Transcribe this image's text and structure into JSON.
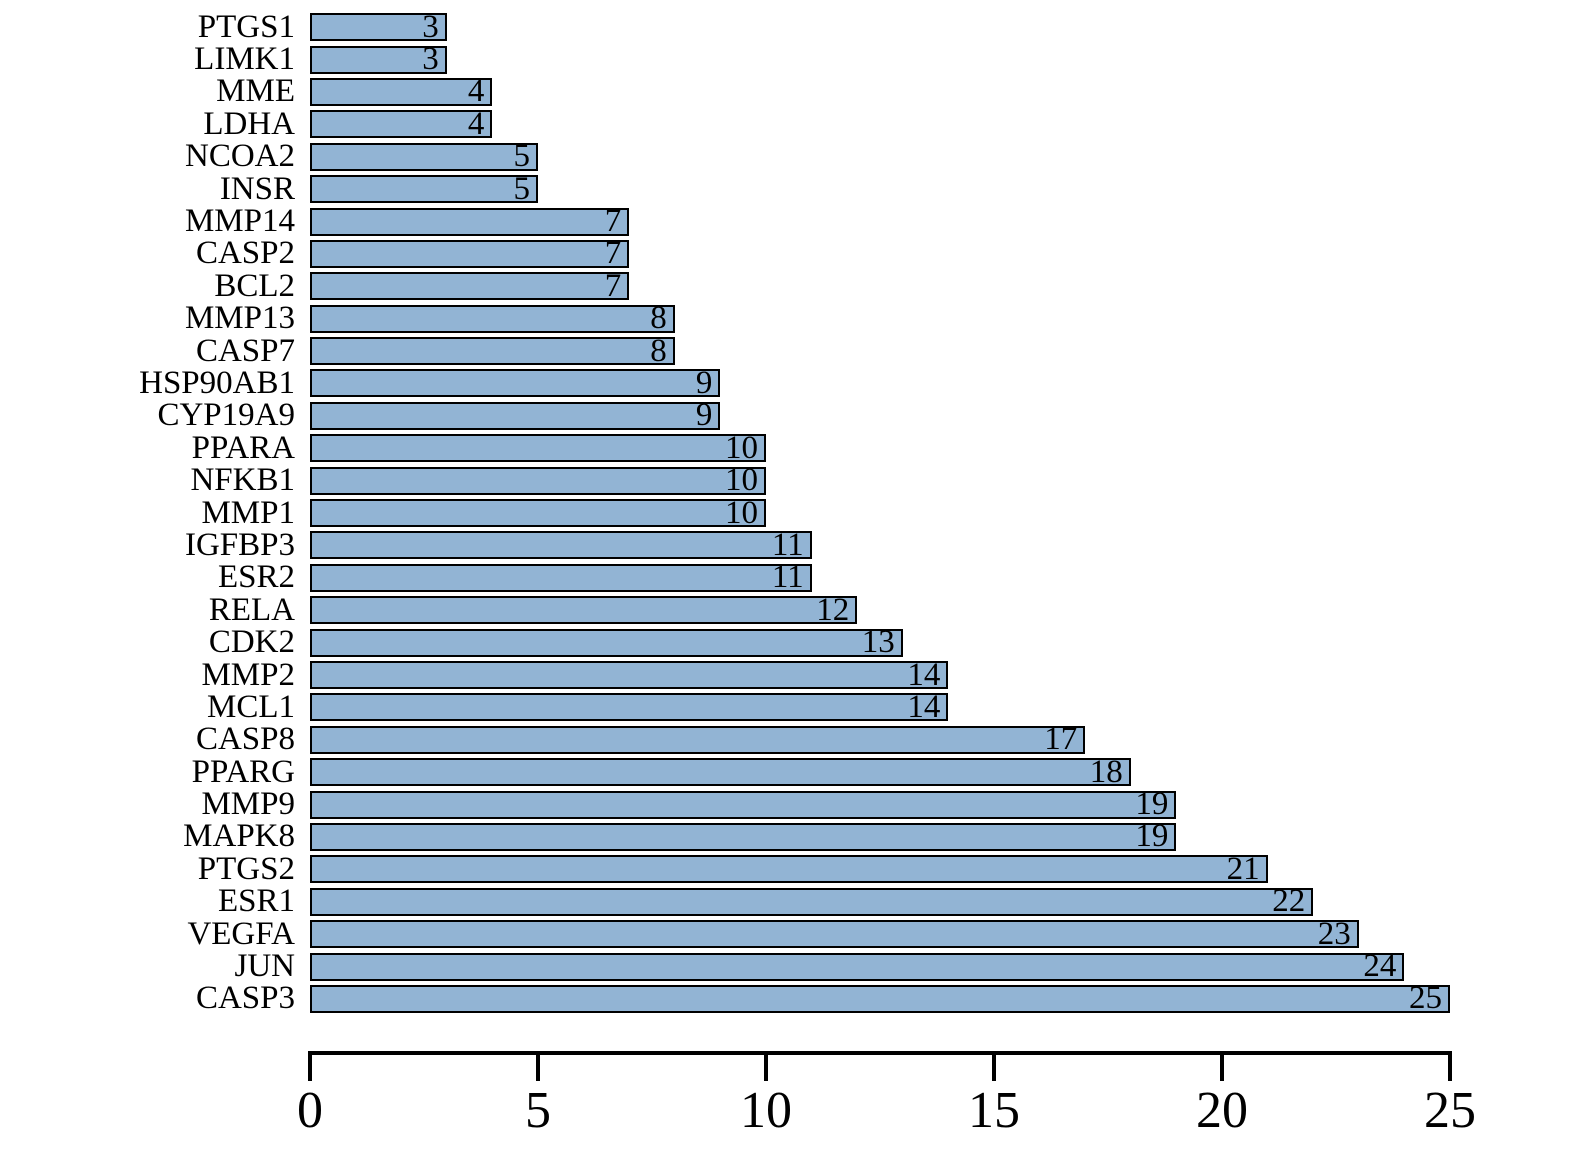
{
  "figure": {
    "background_color": "#ffffff"
  },
  "chart_data": {
    "type": "bar",
    "orientation": "horizontal",
    "categories": [
      "PTGS1",
      "LIMK1",
      "MME",
      "LDHA",
      "NCOA2",
      "INSR",
      "MMP14",
      "CASP2",
      "BCL2",
      "MMP13",
      "CASP7",
      "HSP90AB1",
      "CYP19A9",
      "PPARA",
      "NFKB1",
      "MMP1",
      "IGFBP3",
      "ESR2",
      "RELA",
      "CDK2",
      "MMP2",
      "MCL1",
      "CASP8",
      "PPARG",
      "MMP9",
      "MAPK8",
      "PTGS2",
      "ESR1",
      "VEGFA",
      "JUN",
      "CASP3"
    ],
    "values": [
      3,
      3,
      4,
      4,
      5,
      5,
      7,
      7,
      7,
      8,
      8,
      9,
      9,
      10,
      10,
      10,
      11,
      11,
      12,
      13,
      14,
      14,
      17,
      18,
      19,
      19,
      21,
      22,
      23,
      24,
      25
    ],
    "value_labels": [
      "3",
      "3",
      "4",
      "4",
      "5",
      "5",
      "7",
      "7",
      "7",
      "8",
      "8",
      "9",
      "9",
      "10",
      "10",
      "10",
      "11",
      "11",
      "12",
      "13",
      "14",
      "14",
      "17",
      "18",
      "19",
      "19",
      "21",
      "22",
      "23",
      "24",
      "25"
    ],
    "xlabel": "",
    "ylabel": "",
    "xlim": [
      0,
      25
    ],
    "x_ticks": [
      "0",
      "5",
      "10",
      "15",
      "20",
      "25"
    ],
    "x_tick_values": [
      0,
      5,
      10,
      15,
      20,
      25
    ],
    "grid": false,
    "legend": false,
    "bar_fill_color": "#92b4d4",
    "bar_border_color": "#000000",
    "axis_color": "#000000",
    "text_color": "#000000"
  }
}
